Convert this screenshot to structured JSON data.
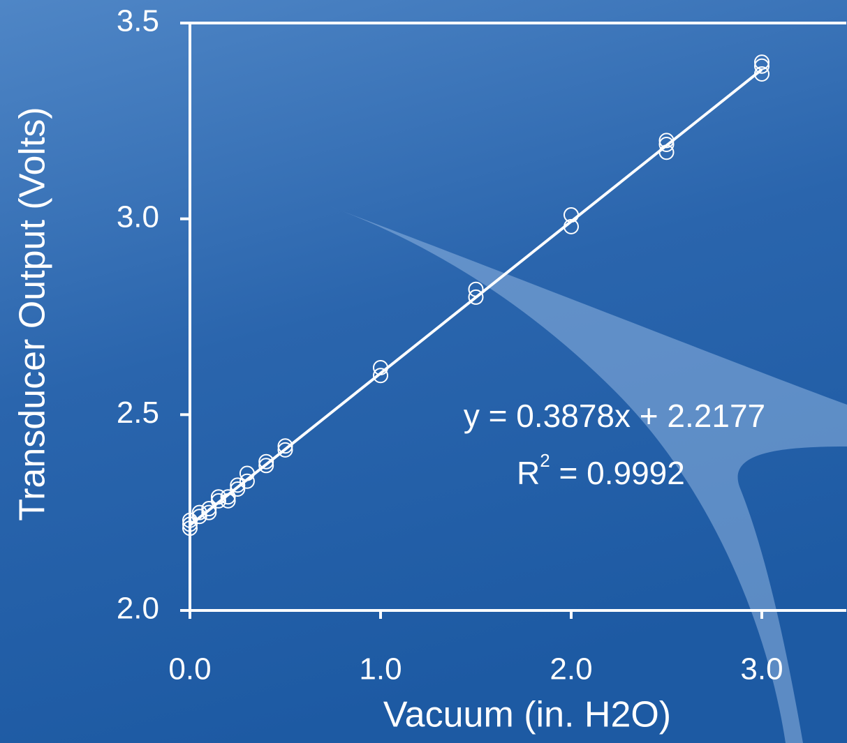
{
  "chart_data": {
    "type": "scatter",
    "x_label": "Vacuum (in. H2O)",
    "y_label": "Transducer Output (Volts)",
    "equation": "y = 0.3878x + 2.2177",
    "r2_label": {
      "base": "R",
      "sup": "2",
      "rest": " = 0.9992"
    },
    "xlim": [
      0,
      3.45
    ],
    "ylim": [
      2.0,
      3.5
    ],
    "xticks": [
      {
        "value": 0,
        "label": "0.0"
      },
      {
        "value": 1,
        "label": "1.0"
      },
      {
        "value": 2,
        "label": "2.0"
      },
      {
        "value": 3,
        "label": "3.0"
      }
    ],
    "yticks": [
      {
        "value": 2,
        "label": "2.0"
      },
      2.5,
      {
        "value": 3,
        "label": "3.0"
      },
      {
        "value": 3.5,
        "label": "3.5"
      }
    ],
    "color": "#ffffff",
    "x": [
      0,
      0,
      0,
      0.05,
      0.05,
      0.1,
      0.1,
      0.15,
      0.15,
      0.2,
      0.2,
      0.25,
      0.25,
      0.3,
      0.3,
      0.4,
      0.4,
      0.5,
      0.5,
      1,
      1,
      1.5,
      1.5,
      2,
      2,
      2.5,
      2.5,
      2.5,
      3,
      3,
      3
    ],
    "y": [
      2.23,
      2.22,
      2.21,
      2.25,
      2.24,
      2.26,
      2.25,
      2.29,
      2.28,
      2.29,
      2.28,
      2.32,
      2.31,
      2.35,
      2.33,
      2.38,
      2.37,
      2.42,
      2.41,
      2.62,
      2.6,
      2.82,
      2.8,
      3.01,
      2.98,
      3.2,
      3.19,
      3.17,
      3.4,
      3.39,
      3.37
    ],
    "trendline": {
      "x": [
        0,
        3
      ],
      "y": [
        2.2177,
        3.3811
      ]
    }
  }
}
